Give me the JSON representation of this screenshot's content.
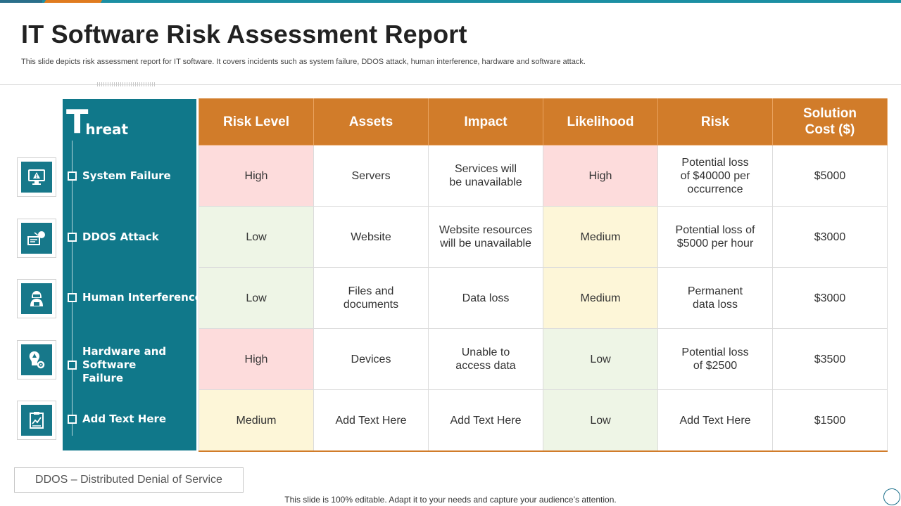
{
  "title": "IT Software Risk Assessment Report",
  "subtitle": "This slide depicts risk assessment report for IT software. It covers incidents such as system failure, DDOS attack, human interference, hardware and software attack.",
  "threat_header": {
    "initial": "T",
    "rest": "hreat"
  },
  "threats": [
    {
      "label": "System Failure",
      "icon": "monitor-warning-icon"
    },
    {
      "label": "DDOS Attack",
      "icon": "network-attack-icon"
    },
    {
      "label": "Human Interference",
      "icon": "hacker-icon"
    },
    {
      "label": "Hardware and Software Failure",
      "icon": "hardware-gear-icon"
    },
    {
      "label": "Add Text Here",
      "icon": "document-chart-icon"
    }
  ],
  "table": {
    "headers": [
      "Risk Level",
      "Assets",
      "Impact",
      "Likelihood",
      "Risk",
      "Solution Cost ($)"
    ],
    "rows": [
      [
        "High",
        "Servers",
        "Services will be unavailable",
        "High",
        "Potential loss of $40000 per occurrence",
        "$5000"
      ],
      [
        "Low",
        "Website",
        "Website resources will be unavailable",
        "Medium",
        "Potential loss of $5000 per hour",
        "$3000"
      ],
      [
        "Low",
        "Files and documents",
        "Data loss",
        "Medium",
        "Permanent data loss",
        "$3000"
      ],
      [
        "High",
        "Devices",
        "Unable to access data",
        "Low",
        "Potential loss of $2500",
        "$3500"
      ],
      [
        "Medium",
        "Add Text Here",
        "Add Text Here",
        "Low",
        "Add Text Here",
        "$1500"
      ]
    ]
  },
  "colors": {
    "teal": "#10788a",
    "orange": "#d17c2a",
    "high": "#fddcdc",
    "low": "#eef5e6",
    "medium": "#fdf6d8"
  },
  "footnote": "DDOS – Distributed Denial of Service",
  "footer": "This slide is 100% editable. Adapt it to your needs and capture your audience’s attention."
}
